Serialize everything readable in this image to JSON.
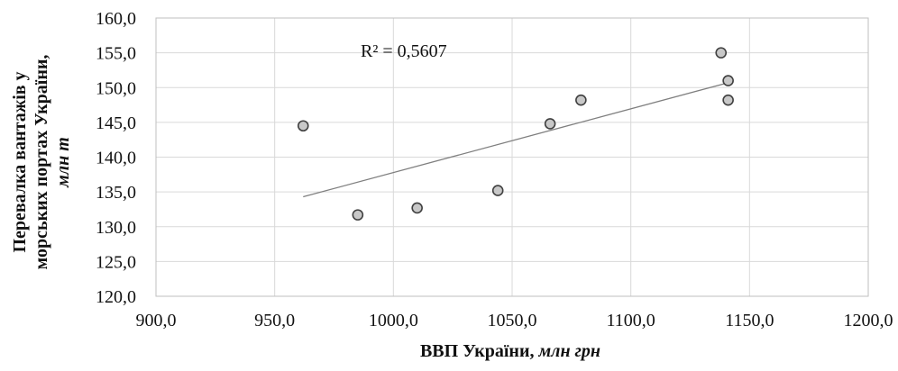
{
  "chart_data": {
    "type": "scatter",
    "title": "",
    "xlabel": {
      "main": "ВВП України, ",
      "unit": "млн грн"
    },
    "ylabel": {
      "line1": "Перевалка вантажів у",
      "line2": "морських портах України,",
      "unit": "млн т"
    },
    "xlim": [
      900,
      1200
    ],
    "ylim": [
      120,
      160
    ],
    "xticks": [
      900,
      950,
      1000,
      1050,
      1100,
      1150,
      1200
    ],
    "yticks": [
      120,
      125,
      130,
      135,
      140,
      145,
      150,
      155,
      160
    ],
    "xtick_labels": [
      "900,0",
      "950,0",
      "1000,0",
      "1050,0",
      "1100,0",
      "1150,0",
      "1200,0"
    ],
    "ytick_labels": [
      "120,0",
      "125,0",
      "130,0",
      "135,0",
      "140,0",
      "145,0",
      "150,0",
      "155,0",
      "160,0"
    ],
    "grid": true,
    "points": [
      {
        "x": 962,
        "y": 144.5
      },
      {
        "x": 985,
        "y": 131.7
      },
      {
        "x": 1010,
        "y": 132.7
      },
      {
        "x": 1044,
        "y": 135.2
      },
      {
        "x": 1066,
        "y": 144.8
      },
      {
        "x": 1079,
        "y": 148.2
      },
      {
        "x": 1138,
        "y": 155.0
      },
      {
        "x": 1141,
        "y": 151.0
      },
      {
        "x": 1141,
        "y": 148.2
      }
    ],
    "trendline": {
      "x": [
        962,
        1141
      ],
      "y": [
        134.3,
        150.7
      ]
    },
    "annotation": "R² = 0,5607"
  }
}
